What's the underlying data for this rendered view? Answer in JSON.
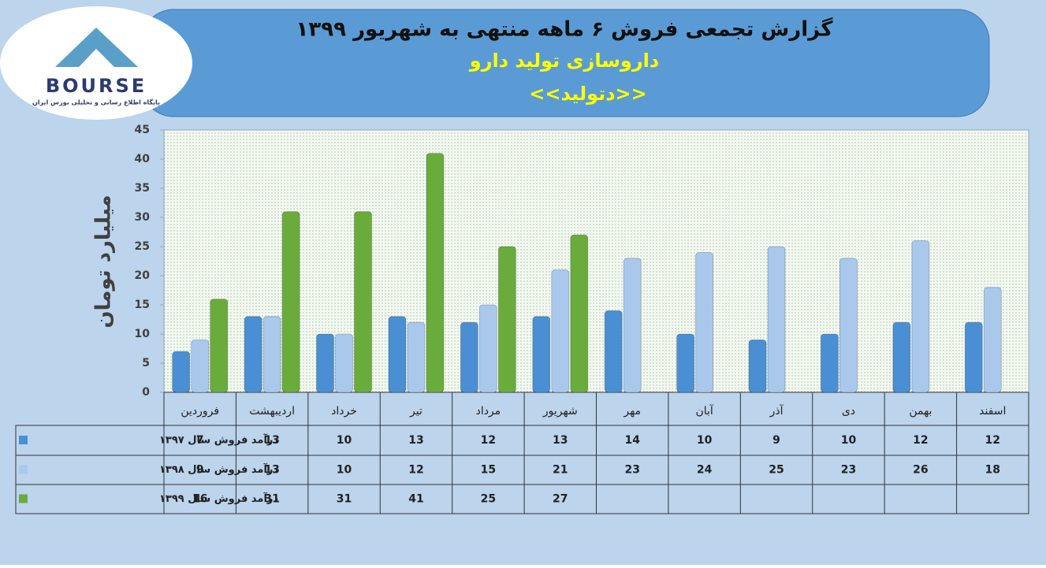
{
  "logo": {
    "name": "BOURSE",
    "tagline": "پایگاه اطلاع رسانی و تحلیلی بورس ایران"
  },
  "chart_data": {
    "type": "bar",
    "title": "گزارش تجمعی فروش ۶ ماهه منتهی به شهریور ۱۳۹۹",
    "subtitle": "داروسازی تولید دارو",
    "symbol": "<<دتولید>>",
    "y_label": "میلیارد تومان",
    "categories": [
      "فروردین",
      "اردیبهشت",
      "خرداد",
      "تیر",
      "مرداد",
      "شهریور",
      "مهر",
      "آبان",
      "آذر",
      "دی",
      "بهمن",
      "اسفند"
    ],
    "series": [
      {
        "name": "درآمد فروش سال ۱۳۹۷",
        "color": "#4a8fd4",
        "values": [
          7,
          13,
          10,
          13,
          12,
          13,
          14,
          10,
          9,
          10,
          12,
          12
        ]
      },
      {
        "name": "درآمد فروش سال ۱۳۹۸",
        "color": "#a9c8ec",
        "values": [
          9,
          13,
          10,
          12,
          15,
          21,
          23,
          24,
          25,
          23,
          26,
          18
        ]
      },
      {
        "name": "درآمد فروش سال ۱۳۹۹",
        "color": "#6aac3c",
        "values": [
          16,
          31,
          31,
          41,
          25,
          27,
          null,
          null,
          null,
          null,
          null,
          null
        ]
      }
    ],
    "ylim": [
      0,
      45
    ],
    "yticks": [
      0,
      5,
      10,
      15,
      20,
      25,
      30,
      35,
      40,
      45
    ]
  }
}
